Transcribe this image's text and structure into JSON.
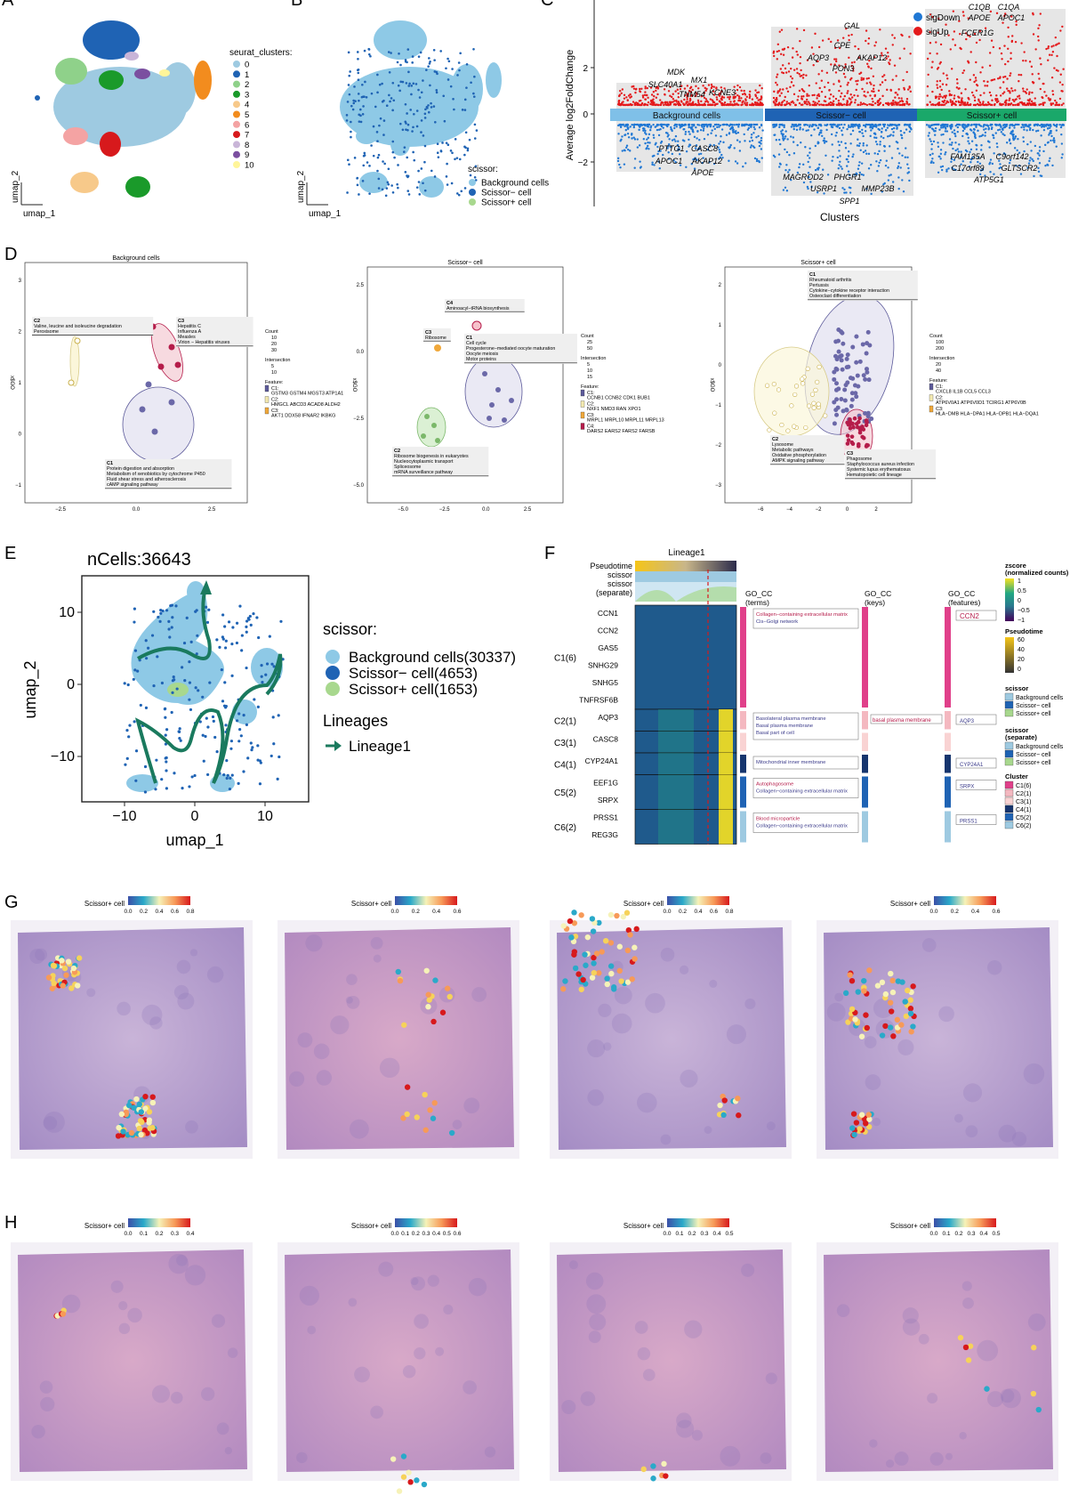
{
  "panels": {
    "A": {
      "letter": "A",
      "legend_title": "seurat_clusters:",
      "legend_items": [
        "0",
        "1",
        "2",
        "3",
        "4",
        "5",
        "6",
        "7",
        "8",
        "9",
        "10"
      ],
      "legend_colors": [
        "#9ecae1",
        "#1f63b4",
        "#8fd18a",
        "#1a9a2a",
        "#f7c98a",
        "#f28c1e",
        "#f4a3a3",
        "#d7191c",
        "#c9b5d8",
        "#7b4fa0",
        "#fff59a"
      ],
      "xaxis": "umap_1",
      "yaxis": "umap_2"
    },
    "B": {
      "letter": "B",
      "legend_title": "scissor:",
      "legend_items": [
        "Background cells",
        "Scissor− cell",
        "Scissor+ cell"
      ],
      "legend_colors": [
        "#8ec9e6",
        "#1f63b4",
        "#a8d88e"
      ],
      "xaxis": "umap_1",
      "yaxis": "umap_2"
    },
    "C": {
      "letter": "C",
      "ylabel": "Average log2FoldChange",
      "xlabel": "Clusters",
      "legend_items": [
        "sigDown",
        "sigUp"
      ],
      "legend_colors": [
        "#1f77d4",
        "#e41a1c"
      ],
      "yticks": [
        "2",
        "0",
        "−2"
      ],
      "groups": [
        "Background cells",
        "Scissor− cell",
        "Scissor+ cell"
      ],
      "group_colors": [
        "#7fc0e8",
        "#1f63b4",
        "#1aa86a"
      ],
      "genes_bg_up": [
        "MDK",
        "MX1",
        "SLC40A1",
        "KCNE3",
        "TNM54"
      ],
      "genes_bg_down": [
        "PTTG1",
        "CASC8",
        "APOC1",
        "AKAP12",
        "APOE"
      ],
      "genes_sm_up": [
        "GAL",
        "CPE",
        "AQP3",
        "AKAP12",
        "PON3"
      ],
      "genes_sm_down": [
        "MAGROD2",
        "PHGR1",
        "USRP1",
        "MMP23B",
        "SPP1"
      ],
      "genes_sp_up": [
        "C1QB",
        "C1QA",
        "APOE",
        "APOC1",
        "FCER1G"
      ],
      "genes_sp_down": [
        "FAM135A",
        "C9orf142",
        "C17orf89",
        "GLTSCR2",
        "ATP5G1"
      ]
    },
    "D": {
      "letter": "D",
      "sub": [
        {
          "title": "Background cells",
          "clusters": [
            "C2",
            "C3",
            "C1"
          ],
          "c2_text": [
            "Valine, leucine and isoleucine degradation",
            "Peroxisome"
          ],
          "c3_text": [
            "Hepatitis C",
            "Influenza A",
            "Measles",
            "Virion − Hepatitis viruses"
          ],
          "c1_text": [
            "Protein digestion and absorption",
            "Metabolism of xenobiotics by cytochrome P450",
            "Fluid shear stress and atherosclerosis",
            "cAMP signaling pathway"
          ],
          "yticks": [
            "3",
            "2",
            "1",
            "0",
            "−1"
          ],
          "xticks": [
            "−2.5",
            "0.0",
            "2.5"
          ],
          "legend": [
            "Count",
            "10",
            "20",
            "30",
            "Intersection",
            "5",
            "10",
            "Feature:",
            "C1:",
            "GSTM3 GSTM4 MGST3 ATP1A1",
            "C2:",
            "HMGCL ABCD3 ACAD8 ALDH2",
            "C3:",
            "AKT1 DDX58 IFNAR2 IKBKG"
          ],
          "ylab": "x$GO"
        },
        {
          "title": "Scissor− cell",
          "clusters": [
            "C4",
            "C3",
            "C1",
            "C2"
          ],
          "c4_text": [
            "Aminoacyl−tRNA biosynthesis"
          ],
          "c3_text": [
            "Ribosome"
          ],
          "c1_text": [
            "Cell cycle",
            "Progesterone−mediated oocyte maturation",
            "Oocyte meiosis",
            "Motor proteins"
          ],
          "c2_text": [
            "Ribosome biogenesis in eukaryotes",
            "Nucleocytoplasmic transport",
            "Spliceosome",
            "mRNA surveillance pathway"
          ],
          "yticks": [
            "2.5",
            "0.0",
            "−2.5",
            "−5.0"
          ],
          "xticks": [
            "−5.0",
            "−2.5",
            "0.0",
            "2.5"
          ],
          "legend": [
            "Count",
            "25",
            "50",
            "Intersection",
            "5",
            "10",
            "15",
            "Feature:",
            "C1:",
            "CCNB1 CCNB2 CDK1 BUB1",
            "C2:",
            "NXF1 NMD3 RAN XPO1",
            "C3:",
            "MRPL1 MRPL10 MRPL11 MRPL13",
            "C4:",
            "DARS2 EARS2 FARS2 FARSB"
          ],
          "ylab": "x$GO"
        },
        {
          "title": "Scissor+ cell",
          "clusters": [
            "C1",
            "C2",
            "C3"
          ],
          "c1_text": [
            "Rheumatoid arthritis",
            "Pertussis",
            "Cytokine−cytokine receptor interaction",
            "Osteoclast differentiation"
          ],
          "c2_text": [
            "Lysosome",
            "Metabolic pathways",
            "Oxidative phosphorylation",
            "AMPK signaling pathway"
          ],
          "c3_text": [
            "Phagosome",
            "Staphylococcus aureus infection",
            "Systemic lupus erythematosus",
            "Hematopoietic cell lineage"
          ],
          "yticks": [
            "2",
            "1",
            "0",
            "−1",
            "−2",
            "−3"
          ],
          "xticks": [
            "−6",
            "−4",
            "−2",
            "0",
            "2"
          ],
          "legend": [
            "Count",
            "100",
            "200",
            "Intersection",
            "20",
            "40",
            "Feature:",
            "C1:",
            "CXCL8 IL1B CCL5 CCL3",
            "C2:",
            "ATP6V0A1 ATP6V0D1 TCIRG1 ATP6V0B",
            "C3:",
            "HLA−DMB HLA−DPA1 HLA−DPB1 HLA−DQA1"
          ],
          "ylab": "x$GO"
        }
      ]
    },
    "E": {
      "letter": "E",
      "title": "nCells:36643",
      "xlabel": "umap_1",
      "ylabel": "umap_2",
      "xticks": [
        "−10",
        "0",
        "10"
      ],
      "yticks": [
        "10",
        "0",
        "−10"
      ],
      "legend_title": "scissor:",
      "legend_items": [
        "Background cells(30337)",
        "Scissor− cell(4653)",
        "Scissor+ cell(1653)"
      ],
      "legend_colors": [
        "#8ec9e6",
        "#1f63b4",
        "#a8d88e"
      ],
      "lineage_title": "Lineages",
      "lineage_item": "Lineage1",
      "lineage_color": "#1a7a5e"
    },
    "F": {
      "letter": "F",
      "col_title": "Lineage1",
      "track_labels": [
        "Pseudotime",
        "scissor",
        "scissor",
        "(separate)"
      ],
      "rows": [
        {
          "cluster": "C1(6)",
          "genes": [
            "CCN1",
            "CCN2",
            "GAS5",
            "SNHG29",
            "SNHG5",
            "TNFRSF6B"
          ],
          "go": [
            "Collagen−containing extracellular matrix",
            "Cis−Golgi network"
          ],
          "key": "",
          "feat": "CCN2"
        },
        {
          "cluster": "C2(1)",
          "genes": [
            "AQP3"
          ],
          "go": [
            "Basolateral plasma membrane",
            "Basal plasma membrane",
            "Basal part of cell"
          ],
          "key": "basal  plasma  membrane",
          "feat": "AQP3"
        },
        {
          "cluster": "C3(1)",
          "genes": [
            "CASC8"
          ],
          "go": [],
          "key": "",
          "feat": ""
        },
        {
          "cluster": "C4(1)",
          "genes": [
            "CYP24A1"
          ],
          "go": [
            "Mitochondrial inner membrane"
          ],
          "key": "",
          "feat": "CYP24A1"
        },
        {
          "cluster": "C5(2)",
          "genes": [
            "EEF1G",
            "SRPX"
          ],
          "go": [
            "Autophagosome",
            "Collagen−containing extracellular matrix"
          ],
          "key": "",
          "feat": "SRPX"
        },
        {
          "cluster": "C6(2)",
          "genes": [
            "PRSS1",
            "REG3G"
          ],
          "go": [
            "Blood microparticle",
            "Collagen−containing extracellular matrix"
          ],
          "key": "",
          "feat": "PRSS1"
        }
      ],
      "go_headers": [
        "GO_CC\n(terms)",
        "GO_CC\n(keys)",
        "GO_CC\n(features)"
      ],
      "legend_z_title": "zscore",
      "legend_z_sub": "(normalized counts)",
      "legend_z_ticks": [
        "1",
        "0.5",
        "0",
        "−0.5",
        "−1"
      ],
      "legend_pt_title": "Pseudotime",
      "legend_pt_ticks": [
        "60",
        "40",
        "20",
        "0"
      ],
      "legend_sc_title": "scissor",
      "legend_sc_items": [
        "Background cells",
        "Scissor− cell",
        "Scissor+ cell"
      ],
      "legend_sep_title": "scissor",
      "legend_sep_sub": "(separate)",
      "legend_cl_title": "Cluster",
      "legend_cl_items": [
        "C1(6)",
        "C2(1)",
        "C3(1)",
        "C4(1)",
        "C5(2)",
        "C6(2)"
      ],
      "legend_cl_colors": [
        "#e0408a",
        "#f4b8c0",
        "#f9d3d3",
        "#16356e",
        "#1f63b4",
        "#9ecae1"
      ]
    },
    "G": {
      "letter": "G",
      "label": "Scissor+ cell",
      "scales": [
        [
          "0.0",
          "0.2",
          "0.4",
          "0.6",
          "0.8"
        ],
        [
          "0.0",
          "0.2",
          "0.4",
          "0.6"
        ],
        [
          "0.0",
          "0.2",
          "0.4",
          "0.6",
          "0.8"
        ],
        [
          "0.0",
          "0.2",
          "0.4",
          "0.6"
        ]
      ]
    },
    "H": {
      "letter": "H",
      "label": "Scissor+ cell",
      "scales": [
        [
          "0.0",
          "0.1",
          "0.2",
          "0.3",
          "0.4"
        ],
        [
          "0.0",
          "0.1",
          "0.2",
          "0.3",
          "0.4",
          "0.5",
          "0.6"
        ],
        [
          "0.0",
          "0.1",
          "0.2",
          "0.3",
          "0.4",
          "0.5"
        ],
        [
          "0.0",
          "0.1",
          "0.2",
          "0.3",
          "0.4",
          "0.5"
        ]
      ]
    }
  }
}
